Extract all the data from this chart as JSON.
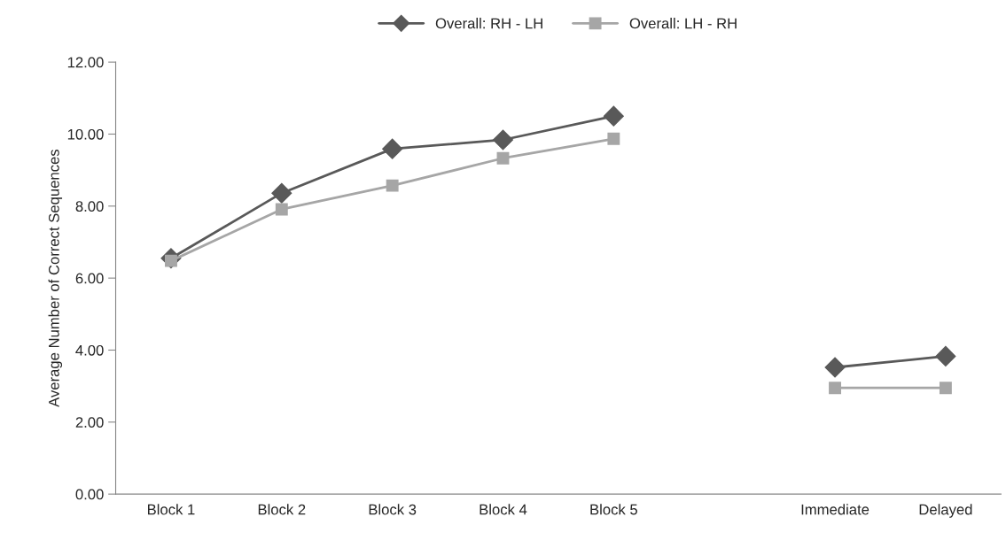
{
  "chart_data": {
    "type": "line",
    "ylabel": "Average Number of Correct Sequences",
    "categories": [
      "Block 1",
      "Block 2",
      "Block 3",
      "Block 4",
      "Block 5",
      null,
      "Immediate",
      "Delayed"
    ],
    "series": [
      {
        "name": "Overall: RH - LH",
        "color": "#595959",
        "marker": "diamond",
        "values": [
          6.55,
          8.36,
          9.59,
          9.84,
          10.5,
          null,
          3.52,
          3.83
        ]
      },
      {
        "name": "Overall: LH - RH",
        "color": "#a6a6a6",
        "marker": "square",
        "values": [
          6.48,
          7.91,
          8.57,
          9.33,
          9.87,
          null,
          2.95,
          2.95
        ]
      }
    ],
    "ylim": [
      0,
      12
    ],
    "yticks": [
      {
        "value": 0,
        "label": "0.00"
      },
      {
        "value": 2,
        "label": "2.00"
      },
      {
        "value": 4,
        "label": "4.00"
      },
      {
        "value": 6,
        "label": "6.00"
      },
      {
        "value": 8,
        "label": "8.00"
      },
      {
        "value": 10,
        "label": "10.00"
      },
      {
        "value": 12,
        "label": "12.00"
      }
    ],
    "grid": false,
    "legend": "top",
    "line_style": "solid"
  }
}
